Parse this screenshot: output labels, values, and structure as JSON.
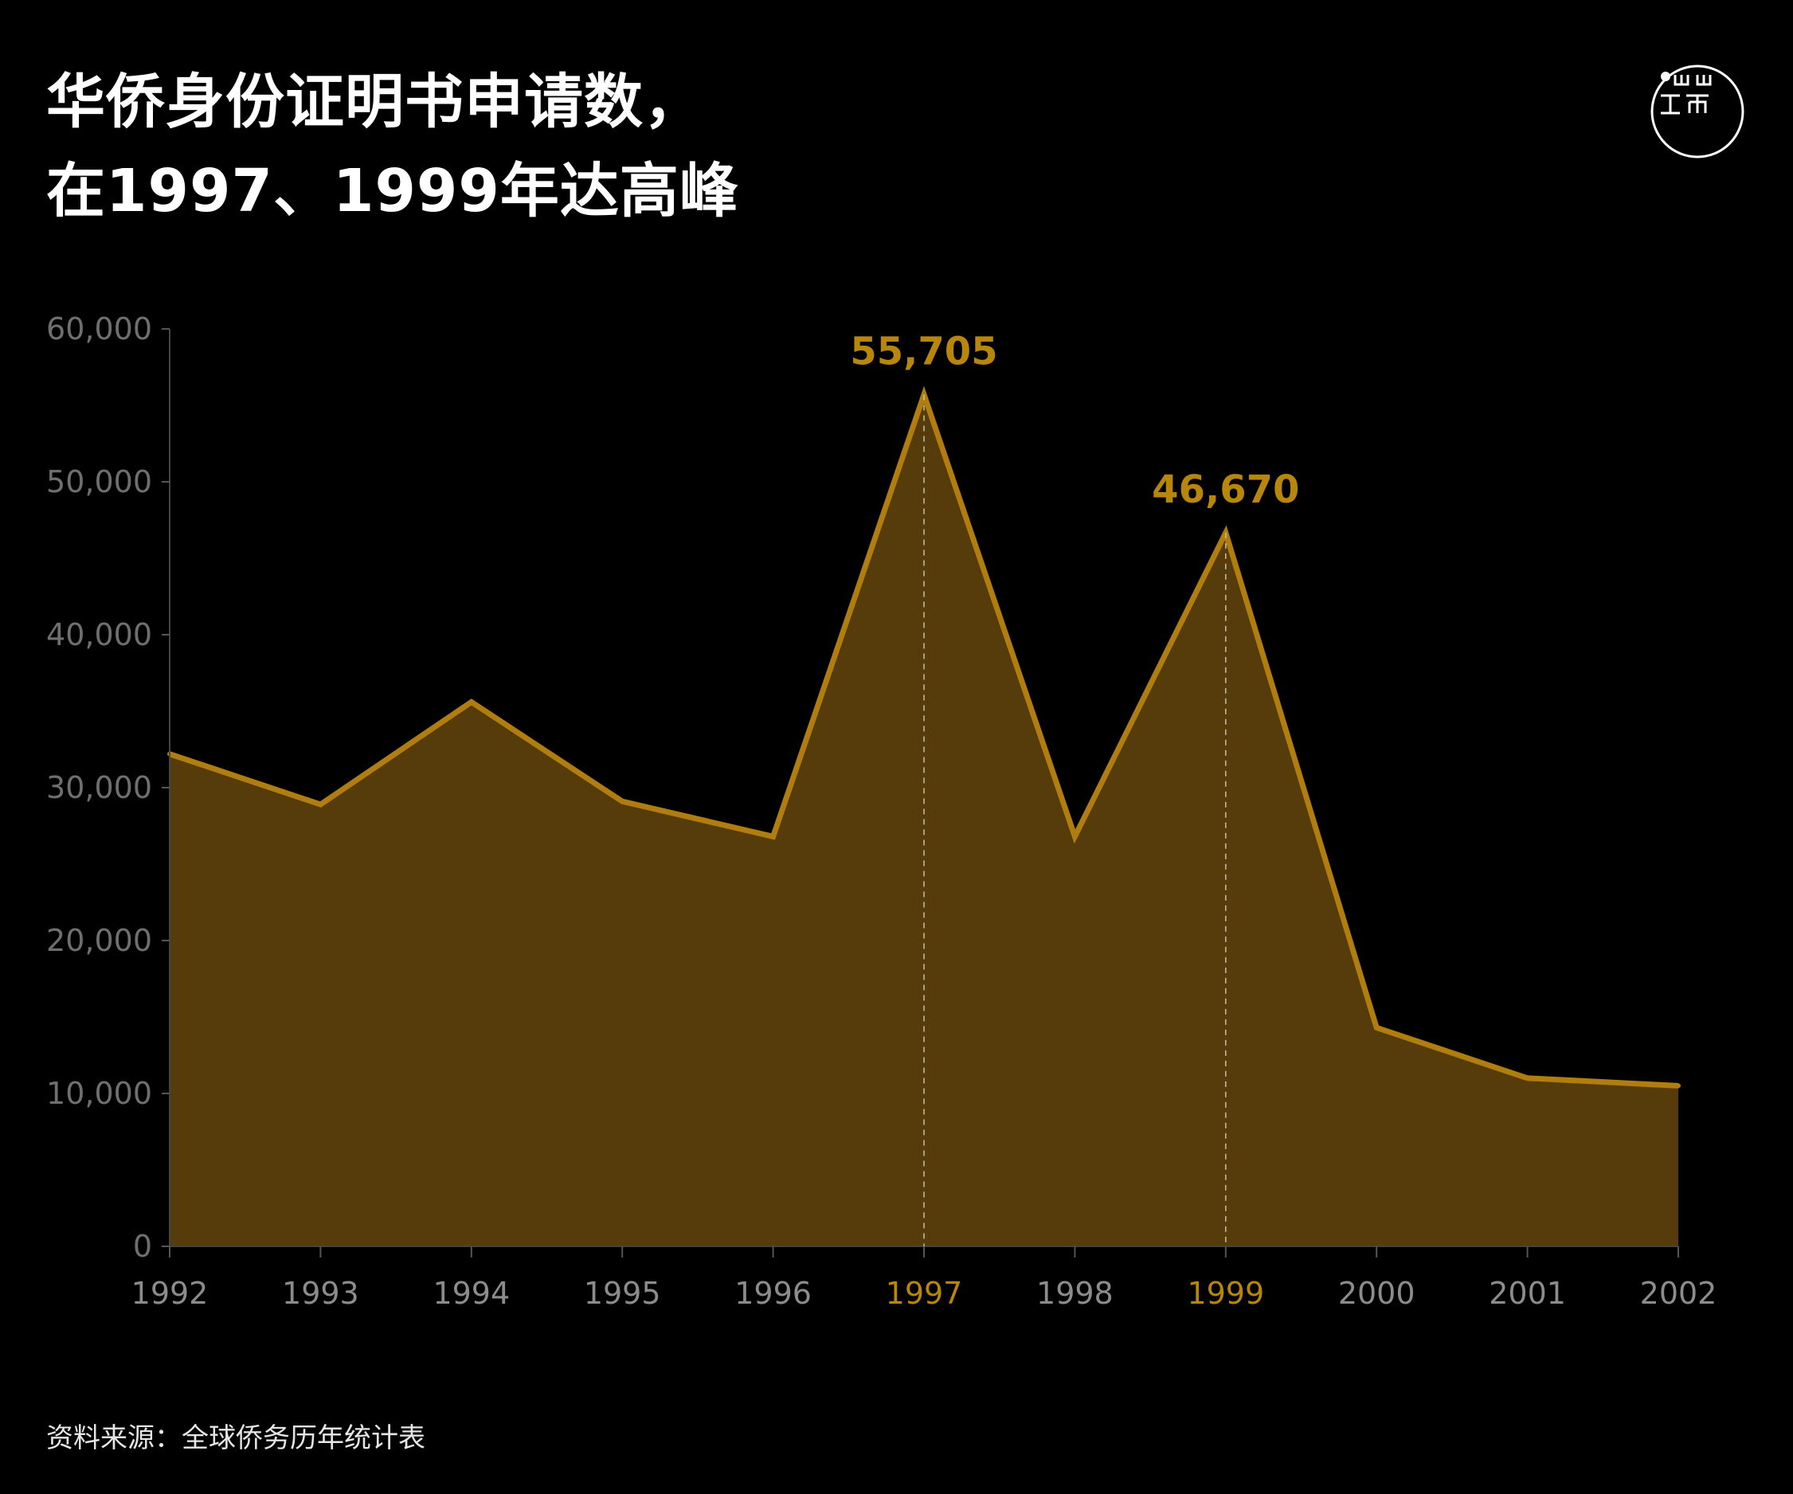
{
  "title": {
    "line1": "华侨身份证明书申请数，",
    "line2": "在1997、1999年达高峰"
  },
  "logo": {
    "name": "端传媒 logo",
    "icon": "initium-logo-icon"
  },
  "source": "资料来源：全球侨务历年统计表",
  "colors": {
    "background": "#000000",
    "area_fill": "#563c0a",
    "line": "#b07d0e",
    "highlight": "#b8860b",
    "axis_text": "#6f6f6f",
    "x_tick_text": "#8c8c8c"
  },
  "chart_data": {
    "type": "area",
    "title": "华侨身份证明书申请数，在1997、1999年达高峰",
    "xlabel": "",
    "ylabel": "",
    "x": [
      "1992",
      "1993",
      "1994",
      "1995",
      "1996",
      "1997",
      "1998",
      "1999",
      "2000",
      "2001",
      "2002"
    ],
    "y_tick_labels": [
      "0",
      "10,000",
      "20,000",
      "30,000",
      "40,000",
      "50,000",
      "60,000"
    ],
    "series": [
      {
        "values": [
          32200,
          28900,
          35600,
          29100,
          26800,
          55705,
          26800,
          46670,
          14300,
          11000,
          10500
        ]
      }
    ],
    "ylim": [
      0,
      60000
    ],
    "highlighted_years": [
      "1997",
      "1999"
    ],
    "annotations": [
      {
        "x": "1997",
        "value": 55705,
        "label": "55,705"
      },
      {
        "x": "1999",
        "value": 46670,
        "label": "46,670"
      }
    ],
    "grid": false,
    "legend": "none"
  }
}
